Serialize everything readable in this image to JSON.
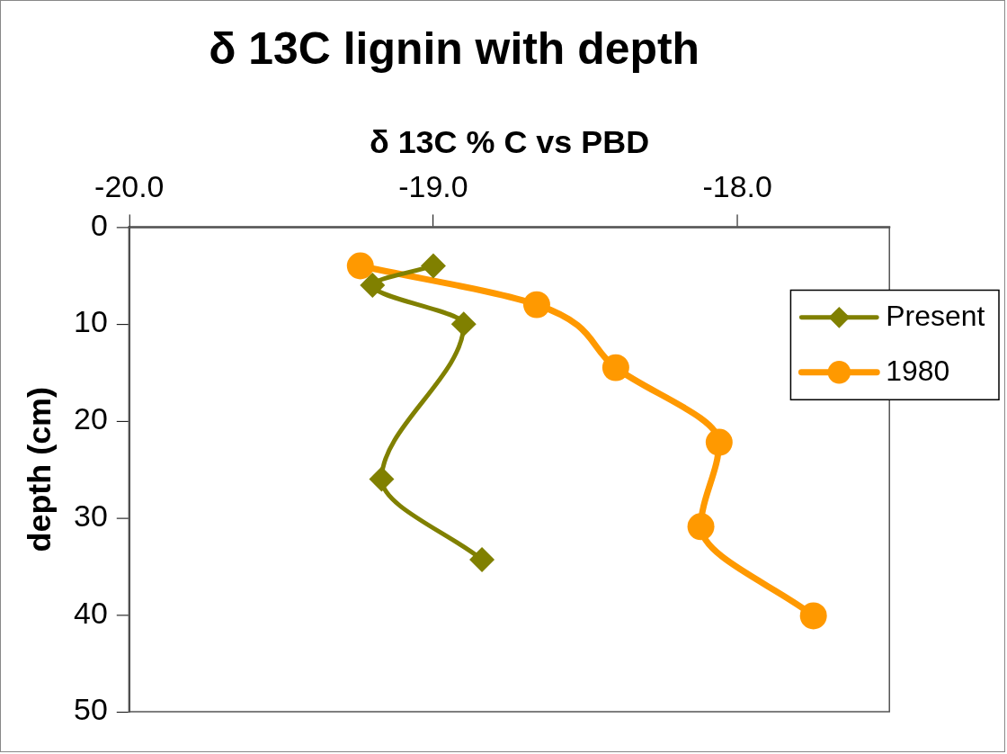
{
  "chart_data": {
    "type": "line",
    "title": "δ 13C lignin with depth",
    "xlabel": "δ 13C % C vs PBD",
    "ylabel": "depth (cm)",
    "xlim": [
      -20,
      -17.5
    ],
    "xticks": [
      {
        "value": -20,
        "label": "-20.0"
      },
      {
        "value": -19,
        "label": "-19.0"
      },
      {
        "value": -18,
        "label": "-18.0"
      }
    ],
    "ylim": [
      50,
      0
    ],
    "yticks": [
      0,
      10,
      20,
      30,
      40,
      50
    ],
    "grid": false,
    "legend": "right",
    "series": [
      {
        "name": "Present",
        "color": "#808000",
        "marker": "diamond",
        "x": [
          -19.0,
          -19.2,
          -18.9,
          -19.17,
          -18.84
        ],
        "values": [
          4,
          6,
          10,
          26,
          34.3
        ]
      },
      {
        "name": "1980",
        "color": "#ff9900",
        "marker": "circle",
        "x": [
          -19.24,
          -18.66,
          -18.4,
          -18.06,
          -18.12,
          -17.75
        ],
        "values": [
          4,
          8,
          14.5,
          22.2,
          30.9,
          40.1
        ]
      }
    ]
  }
}
